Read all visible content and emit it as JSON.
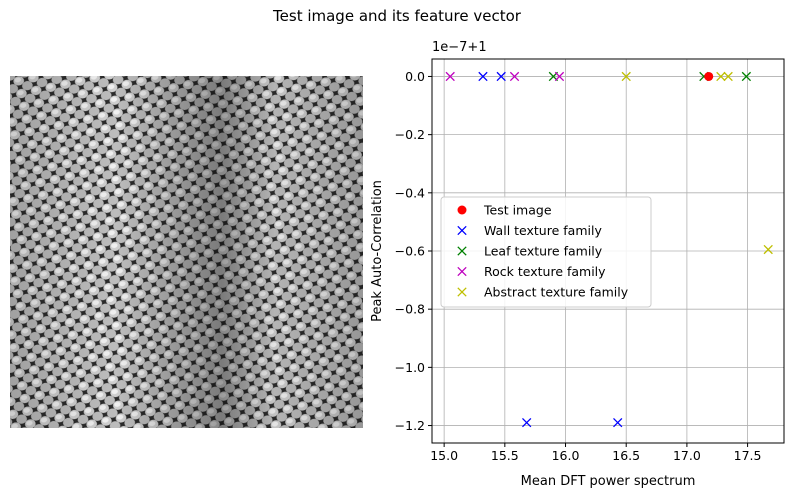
{
  "figure": {
    "title": "Test image and its feature vector"
  },
  "image_panel": {
    "description_icon": "grayscale-texture-image"
  },
  "chart_data": {
    "type": "scatter",
    "xlabel": "Mean DFT power spectrum",
    "ylabel": "Peak Auto-Correlation",
    "offset_label": "1e−7+1",
    "xlim": [
      14.9,
      17.8
    ],
    "ylim": [
      -1.26,
      0.06
    ],
    "xticks": [
      15.0,
      15.5,
      16.0,
      16.5,
      17.0,
      17.5
    ],
    "xtick_labels": [
      "15.0",
      "15.5",
      "16.0",
      "16.5",
      "17.0",
      "17.5"
    ],
    "yticks": [
      0.0,
      -0.2,
      -0.4,
      -0.6,
      -0.8,
      -1.0,
      -1.2
    ],
    "ytick_labels": [
      "0.0",
      "−0.2",
      "−0.4",
      "−0.6",
      "−0.8",
      "−1.0",
      "−1.2"
    ],
    "grid": true,
    "legend_position": "center-left",
    "series": [
      {
        "name": "Test image",
        "marker": "o",
        "color": "#ff0000",
        "points": [
          [
            17.18,
            0.0
          ]
        ]
      },
      {
        "name": "Wall texture family",
        "marker": "x",
        "color": "#0000ff",
        "points": [
          [
            15.32,
            0.0
          ],
          [
            15.47,
            0.0
          ],
          [
            15.68,
            -1.19
          ],
          [
            16.43,
            -1.19
          ]
        ]
      },
      {
        "name": "Leaf texture family",
        "marker": "x",
        "color": "#008000",
        "points": [
          [
            15.9,
            0.0
          ],
          [
            17.14,
            0.0
          ],
          [
            17.49,
            0.0
          ]
        ]
      },
      {
        "name": "Rock texture family",
        "marker": "x",
        "color": "#bf00bf",
        "points": [
          [
            15.05,
            0.0
          ],
          [
            15.58,
            0.0
          ],
          [
            15.95,
            0.0
          ]
        ]
      },
      {
        "name": "Abstract texture family",
        "marker": "x",
        "color": "#bfbf00",
        "points": [
          [
            16.5,
            0.0
          ],
          [
            17.28,
            0.0
          ],
          [
            17.34,
            0.0
          ],
          [
            17.67,
            -0.595
          ]
        ]
      }
    ]
  }
}
